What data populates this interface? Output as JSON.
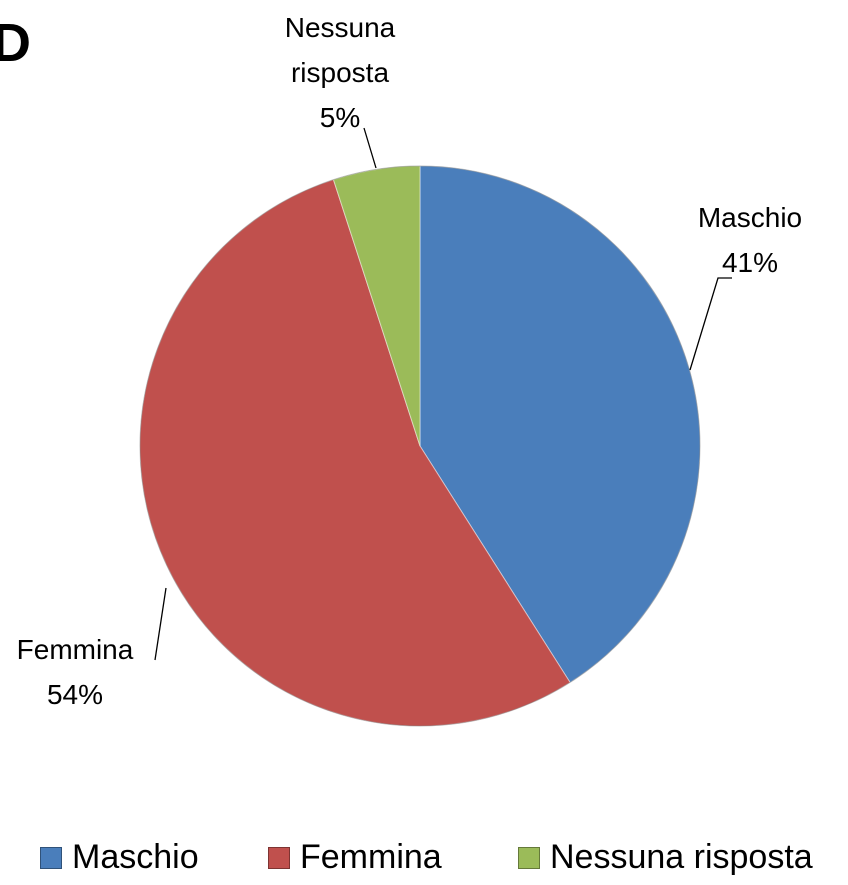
{
  "chart_data": {
    "type": "pie",
    "title": "D",
    "categories": [
      "Maschio",
      "Femmina",
      "Nessuna risposta"
    ],
    "values": [
      41,
      54,
      5
    ],
    "value_labels": [
      "41%",
      "54%",
      "5%"
    ],
    "colors": [
      "#4a7ebb",
      "#c0504d",
      "#9bbb59"
    ],
    "legend": "bottom"
  }
}
